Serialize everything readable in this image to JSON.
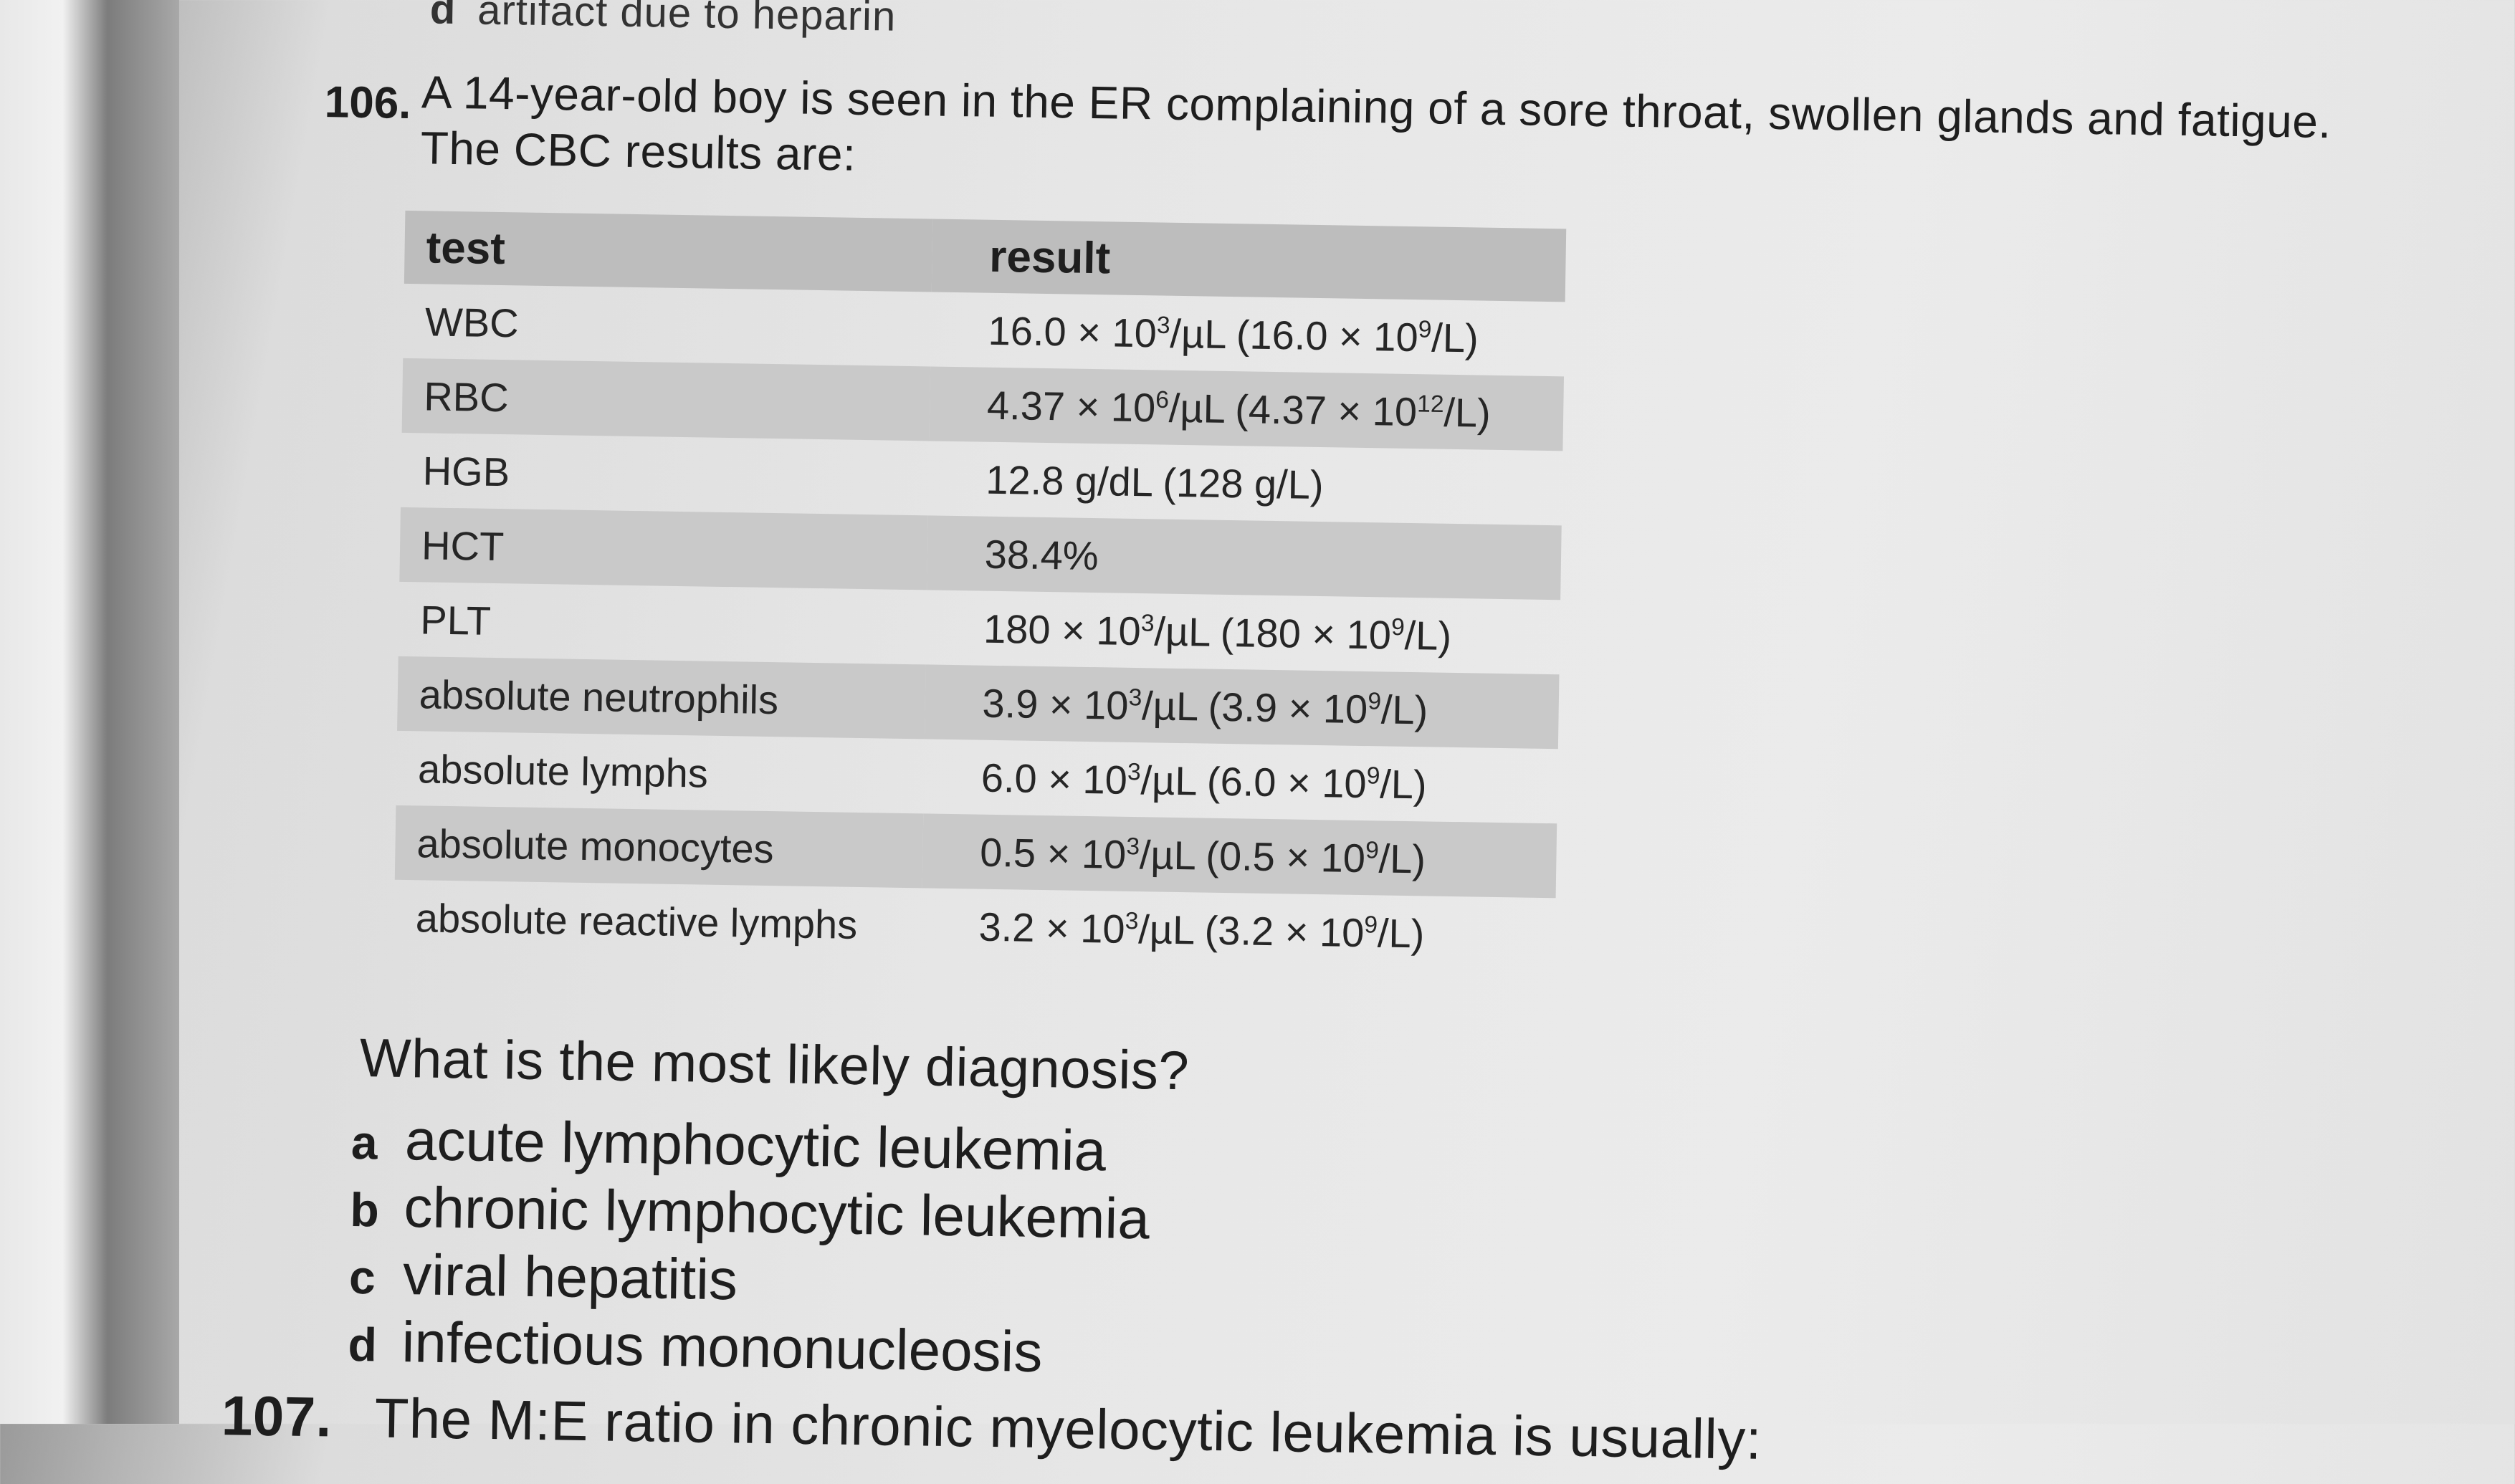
{
  "previous_question": {
    "option_letter": "d",
    "option_text": "artifact due to heparin"
  },
  "question": {
    "number": "106.",
    "stem_line1": "A 14-year-old boy is seen in the ER complaining of a sore throat, swollen glands and fatigue.",
    "stem_line2": "The CBC results are:",
    "table": {
      "headers": {
        "test": "test",
        "result": "result"
      },
      "rows": [
        {
          "test": "WBC",
          "r1": "16.0 × 10",
          "e1": "3",
          "r2": "/µL (16.0 × 10",
          "e2": "9",
          "r3": "/L)"
        },
        {
          "test": "RBC",
          "r1": "4.37 × 10",
          "e1": "6",
          "r2": "/µL (4.37 × 10",
          "e2": "12",
          "r3": "/L)"
        },
        {
          "test": "HGB",
          "r1": "12.8 g/dL (128 g/L)",
          "e1": "",
          "r2": "",
          "e2": "",
          "r3": ""
        },
        {
          "test": "HCT",
          "r1": "38.4%",
          "e1": "",
          "r2": "",
          "e2": "",
          "r3": ""
        },
        {
          "test": "PLT",
          "r1": "180 × 10",
          "e1": "3",
          "r2": "/µL (180 × 10",
          "e2": "9",
          "r3": "/L)"
        },
        {
          "test": "absolute neutrophils",
          "r1": "3.9 × 10",
          "e1": "3",
          "r2": "/µL (3.9 × 10",
          "e2": "9",
          "r3": "/L)"
        },
        {
          "test": "absolute lymphs",
          "r1": "6.0 × 10",
          "e1": "3",
          "r2": "/µL (6.0 × 10",
          "e2": "9",
          "r3": "/L)"
        },
        {
          "test": "absolute monocytes",
          "r1": "0.5 × 10",
          "e1": "3",
          "r2": "/µL (0.5 × 10",
          "e2": "9",
          "r3": "/L)"
        },
        {
          "test": "absolute reactive lymphs",
          "r1": "3.2 × 10",
          "e1": "3",
          "r2": "/µL (3.2 × 10",
          "e2": "9",
          "r3": "/L)"
        }
      ]
    },
    "prompt": "What is the most likely diagnosis?",
    "options": [
      {
        "letter": "a",
        "text": "acute lymphocytic leukemia"
      },
      {
        "letter": "b",
        "text": "chronic lymphocytic leukemia"
      },
      {
        "letter": "c",
        "text": "viral hepatitis"
      },
      {
        "letter": "d",
        "text": "infectious mononucleosis"
      }
    ]
  },
  "next_question": {
    "number": "107.",
    "text": "The M:E ratio in chronic myelocytic leukemia is usually:"
  }
}
